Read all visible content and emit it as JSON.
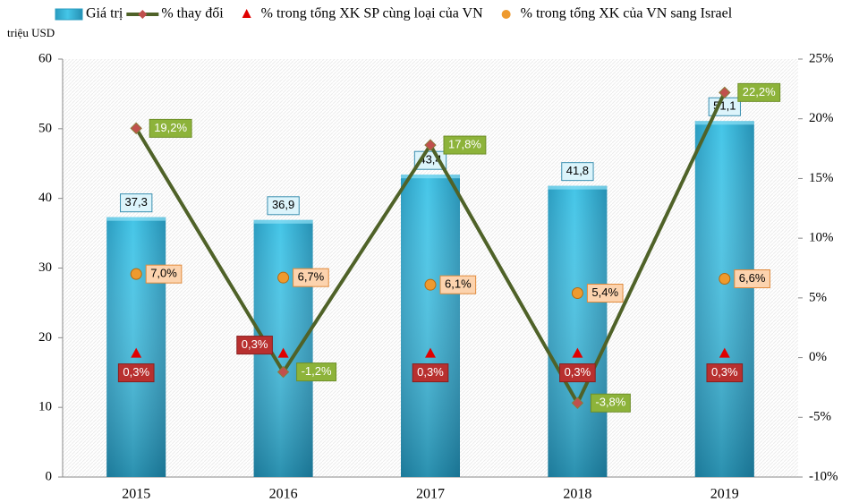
{
  "chart_data": {
    "type": "bar",
    "y_label": "triệu USD",
    "categories": [
      "2015",
      "2016",
      "2017",
      "2018",
      "2019"
    ],
    "ylim": [
      0,
      60
    ],
    "yticks": [
      0,
      10,
      20,
      30,
      40,
      50,
      60
    ],
    "y2lim": [
      -10,
      25
    ],
    "y2ticks": [
      {
        "value": -10,
        "label": "-10%"
      },
      {
        "value": -5,
        "label": "-5%"
      },
      {
        "value": 0,
        "label": "0%"
      },
      {
        "value": 5,
        "label": "5%"
      },
      {
        "value": 10,
        "label": "10%"
      },
      {
        "value": 15,
        "label": "15%"
      },
      {
        "value": 20,
        "label": "20%"
      },
      {
        "value": 25,
        "label": "25%"
      }
    ],
    "series": [
      {
        "name": "Giá trị",
        "type": "bar",
        "color": "#35b9dd",
        "values": [
          37.3,
          36.9,
          43.4,
          41.8,
          51.1
        ],
        "value_labels": [
          "37,3",
          "36,9",
          "43,4",
          "41,8",
          "51,1"
        ]
      },
      {
        "name": "% thay đổi",
        "type": "line",
        "axis": "y2",
        "color": "#4f6228",
        "marker_color": "#c0504d",
        "values": [
          19.2,
          -1.2,
          17.8,
          -3.8,
          22.2
        ],
        "value_labels": [
          "19,2%",
          "-1,2%",
          "17,8%",
          "-3,8%",
          "22,2%"
        ]
      },
      {
        "name": "% trong tổng XK SP cùng loại của VN",
        "type": "triangle",
        "axis": "y2",
        "color": "#e00000",
        "values": [
          0.3,
          0.3,
          0.3,
          0.3,
          0.3
        ],
        "value_labels": [
          "0,3%",
          "0,3%",
          "0,3%",
          "0,3%",
          "0,3%"
        ]
      },
      {
        "name": "% trong tổng XK của VN sang Israel",
        "type": "circle",
        "axis": "y2",
        "color": "#ee9a2e",
        "values": [
          7.0,
          6.7,
          6.1,
          5.4,
          6.6
        ],
        "value_labels": [
          "7,0%",
          "6,7%",
          "6,1%",
          "5,4%",
          "6,6%"
        ]
      }
    ]
  }
}
